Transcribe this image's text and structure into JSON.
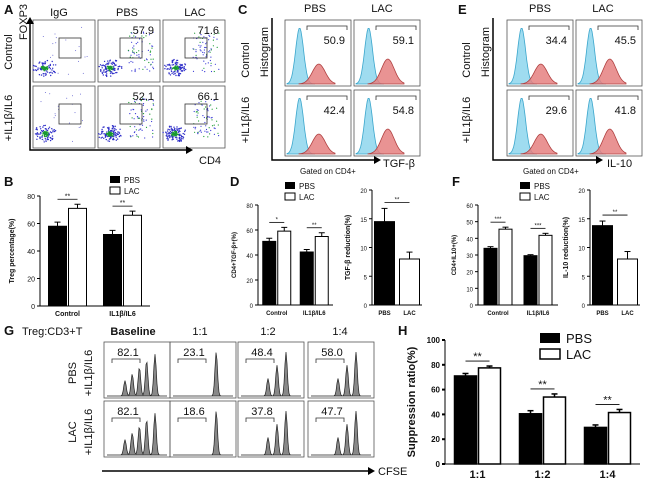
{
  "panels": {
    "A": {
      "letter": "A",
      "columns": [
        "IgG",
        "PBS",
        "LAC"
      ],
      "rows": [
        "Control",
        "+IL1β/IL6"
      ],
      "y_axis": "FOXP3",
      "x_axis": "CD4",
      "values": [
        [
          "",
          "57.9",
          "71.6"
        ],
        [
          "",
          "52.1",
          "66.1"
        ]
      ]
    },
    "B": {
      "letter": "B",
      "legend": [
        "PBS",
        "LAC"
      ],
      "sig": [
        "**",
        "**"
      ]
    },
    "C": {
      "letter": "C",
      "columns": [
        "PBS",
        "LAC"
      ],
      "rows": [
        "Control",
        "+IL1β/IL6"
      ],
      "y_axis": "Histogram",
      "x_axis": "TGF-β",
      "gated": "Gated on CD4+",
      "values": [
        [
          "50.9",
          "59.1"
        ],
        [
          "42.4",
          "54.8"
        ]
      ]
    },
    "D": {
      "letter": "D",
      "legend": [
        "PBS",
        "LAC"
      ],
      "sig_left": [
        "*",
        "**"
      ],
      "sig_right": "**"
    },
    "E": {
      "letter": "E",
      "columns": [
        "PBS",
        "LAC"
      ],
      "rows": [
        "Control",
        "+IL1β/IL6"
      ],
      "y_axis": "Histogram",
      "x_axis": "IL-10",
      "gated": "Gated on CD4+",
      "values": [
        [
          "34.4",
          "45.5"
        ],
        [
          "29.6",
          "41.8"
        ]
      ]
    },
    "F": {
      "letter": "F",
      "legend": [
        "PBS",
        "LAC"
      ],
      "sig_left": [
        "***",
        "***"
      ],
      "sig_right": "**"
    },
    "G": {
      "letter": "G",
      "header": "Treg:CD3+T",
      "columns": [
        "Baseline",
        "1:1",
        "1:2",
        "1:4"
      ],
      "rows": [
        "PBS",
        "LAC"
      ],
      "row_sub": "+IL1β/IL6",
      "x_axis": "CFSE",
      "values": [
        [
          "82.1",
          "23.1",
          "48.4",
          "58.0"
        ],
        [
          "82.1",
          "18.6",
          "37.8",
          "47.7"
        ]
      ]
    },
    "H": {
      "letter": "H",
      "legend": [
        "PBS",
        "LAC"
      ],
      "sig": [
        "**",
        "**",
        "**"
      ]
    }
  },
  "chart_data": [
    {
      "id": "B",
      "type": "bar",
      "categories": [
        "Control",
        "IL1β/IL6"
      ],
      "series": [
        {
          "name": "PBS",
          "values": [
            58,
            52
          ],
          "err": [
            3,
            3
          ]
        },
        {
          "name": "LAC",
          "values": [
            71,
            66
          ],
          "err": [
            3,
            3
          ]
        }
      ],
      "ylabel": "Treg percentage(%)",
      "ylim": [
        0,
        80
      ],
      "yticks": [
        "0",
        "20",
        "40",
        "60",
        "80"
      ]
    },
    {
      "id": "D1",
      "type": "bar",
      "categories": [
        "Control",
        "IL1β/IL6"
      ],
      "series": [
        {
          "name": "PBS",
          "values": [
            50.9,
            42.4
          ],
          "err": [
            2.5,
            2
          ]
        },
        {
          "name": "LAC",
          "values": [
            59.1,
            54.8
          ],
          "err": [
            3,
            3
          ]
        }
      ],
      "ylabel": "CD4+TGF-β+(%)",
      "ylim": [
        0,
        80
      ],
      "yticks": [
        "0",
        "20",
        "40",
        "60",
        "80"
      ]
    },
    {
      "id": "D2",
      "type": "bar",
      "categories": [
        "PBS",
        "LAC"
      ],
      "series": [
        {
          "name": "TGF-β reduction",
          "values": [
            14.5,
            8
          ],
          "err": [
            2.3,
            1.2
          ]
        }
      ],
      "ylabel": "TGF-β reduction(%)",
      "ylim": [
        0,
        20
      ],
      "yticks": [
        "0",
        "5",
        "10",
        "15",
        "20"
      ]
    },
    {
      "id": "F1",
      "type": "bar",
      "categories": [
        "Control",
        "IL1β/IL6"
      ],
      "series": [
        {
          "name": "PBS",
          "values": [
            34,
            29.6
          ],
          "err": [
            1,
            0.6
          ]
        },
        {
          "name": "LAC",
          "values": [
            45.5,
            41.8
          ],
          "err": [
            1.2,
            1.2
          ]
        }
      ],
      "ylabel": "CD4+IL10+(%)",
      "ylim": [
        0,
        60
      ],
      "yticks": [
        "0",
        "10",
        "20",
        "30",
        "40",
        "50",
        "60"
      ]
    },
    {
      "id": "F2",
      "type": "bar",
      "categories": [
        "PBS",
        "LAC"
      ],
      "series": [
        {
          "name": "IL-10 reduction",
          "values": [
            13.8,
            8
          ],
          "err": [
            0.8,
            1.3
          ]
        }
      ],
      "ylabel": "IL-10 reduction(%)",
      "ylim": [
        0,
        20
      ],
      "yticks": [
        "0",
        "5",
        "10",
        "15",
        "20"
      ]
    },
    {
      "id": "H",
      "type": "bar",
      "categories": [
        "1:1",
        "1:2",
        "1:4"
      ],
      "series": [
        {
          "name": "PBS",
          "values": [
            71,
            40.5,
            29.5
          ],
          "err": [
            2,
            2.5,
            2
          ]
        },
        {
          "name": "LAC",
          "values": [
            77.5,
            54,
            41.5
          ],
          "err": [
            1.5,
            2.5,
            2.5
          ]
        }
      ],
      "ylabel": "Suppression ratio(%)",
      "ylim": [
        0,
        100
      ],
      "yticks": [
        "0",
        "20",
        "40",
        "60",
        "80",
        "100"
      ]
    }
  ]
}
